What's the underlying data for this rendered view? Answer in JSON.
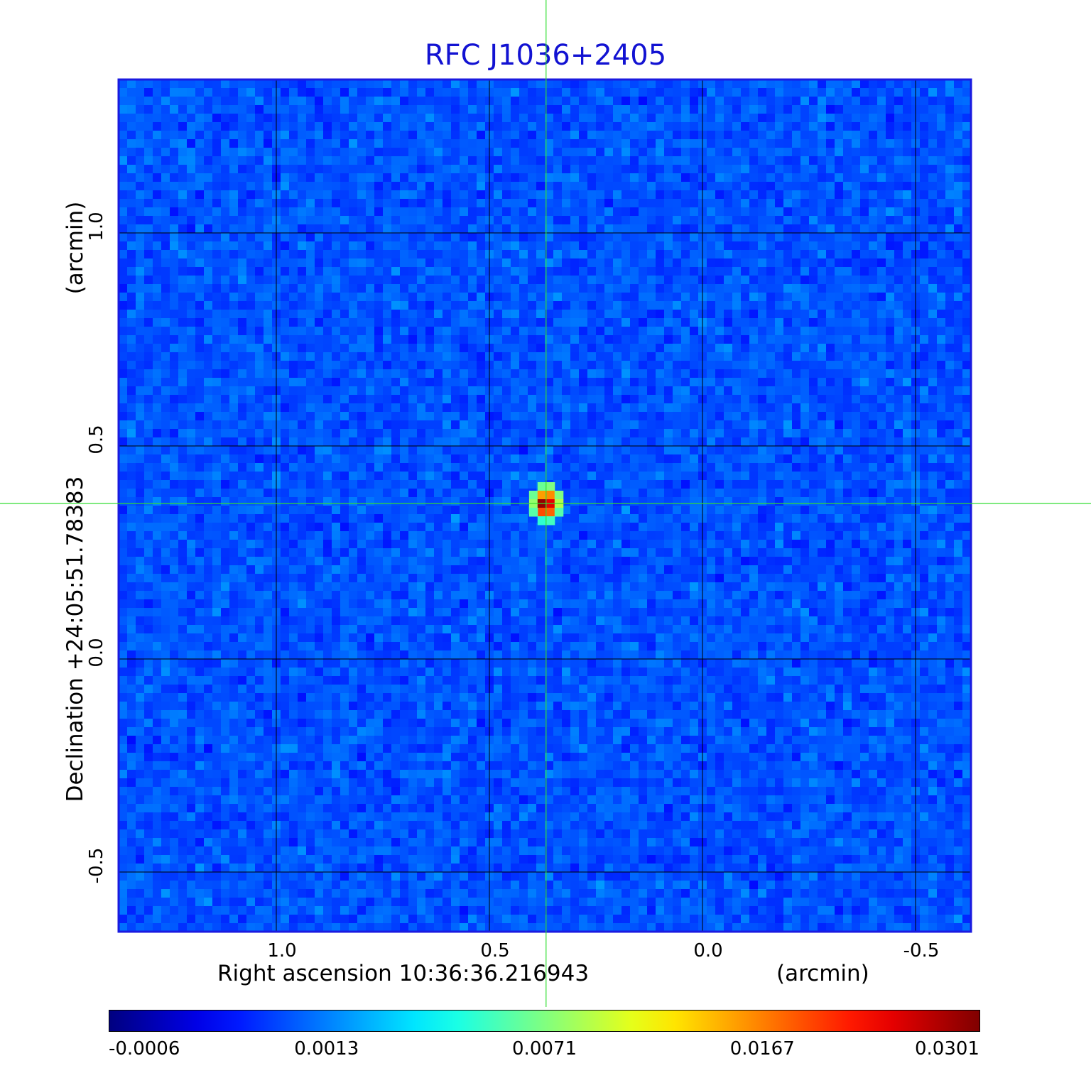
{
  "title": "RFC J1036+2405",
  "colors": {
    "title": "#1212d2",
    "grid": "#000000",
    "crosshair": "#33dd33",
    "frame": "#1a1ae0"
  },
  "chart_data": {
    "type": "heatmap",
    "title": "RFC J1036+2405",
    "xlabel": "Right ascension  10:36:36.216943",
    "xunit": "(arcmin)",
    "ylabel": "Declination  +24:05:51.78383",
    "yunit": "(arcmin)",
    "xlim": [
      1.37,
      -0.63
    ],
    "ylim": [
      -0.64,
      1.36
    ],
    "x_ticks": [
      {
        "value": 1.0,
        "label": "1.0"
      },
      {
        "value": 0.5,
        "label": "0.5"
      },
      {
        "value": 0.0,
        "label": "0.0"
      },
      {
        "value": -0.5,
        "label": "-0.5"
      }
    ],
    "y_ticks": [
      {
        "value": 1.0,
        "label": "1.0"
      },
      {
        "value": 0.5,
        "label": "0.5"
      },
      {
        "value": 0.0,
        "label": "0.0"
      },
      {
        "value": -0.5,
        "label": "-0.5"
      }
    ],
    "grid": true,
    "crosshair": {
      "x": 0.367,
      "y": 0.365
    },
    "source": {
      "x": 0.367,
      "y": 0.365,
      "peak": 0.0301
    },
    "background_level": -0.0001,
    "colormap": "jet",
    "colorbar": {
      "placement": "bottom",
      "tick_labels": [
        "-0.0006",
        "0.0013",
        "0.0071",
        "0.0167",
        "0.0301"
      ],
      "range": [
        -0.0006,
        0.0301
      ]
    }
  }
}
